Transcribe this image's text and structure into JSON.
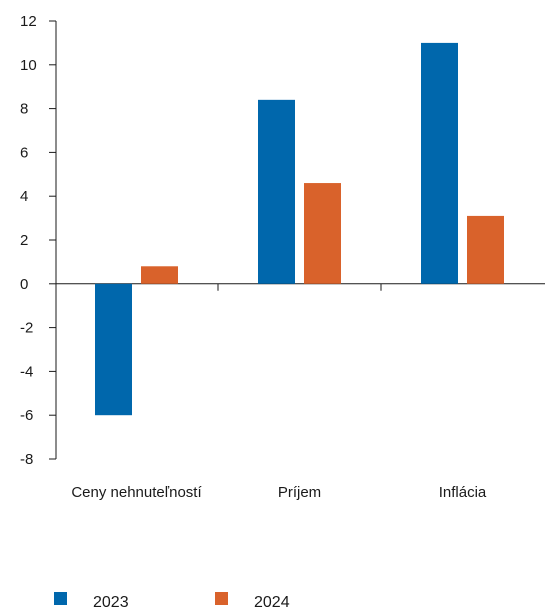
{
  "chart_data": {
    "type": "bar",
    "categories": [
      "Ceny nehnuteľností",
      "Príjem",
      "Inflácia"
    ],
    "series": [
      {
        "name": "2023",
        "values": [
          -6,
          8.4,
          11
        ],
        "color": "#0067ac"
      },
      {
        "name": "2024",
        "values": [
          0.8,
          4.6,
          3.1
        ],
        "color": "#d9622b"
      }
    ],
    "yticks": [
      "12",
      "10",
      "8",
      "6",
      "4",
      "2",
      "0",
      "-2",
      "-4",
      "-6",
      "-8"
    ],
    "ylim": [
      -8,
      12
    ],
    "grid": false,
    "legend_position": "bottom-left"
  }
}
